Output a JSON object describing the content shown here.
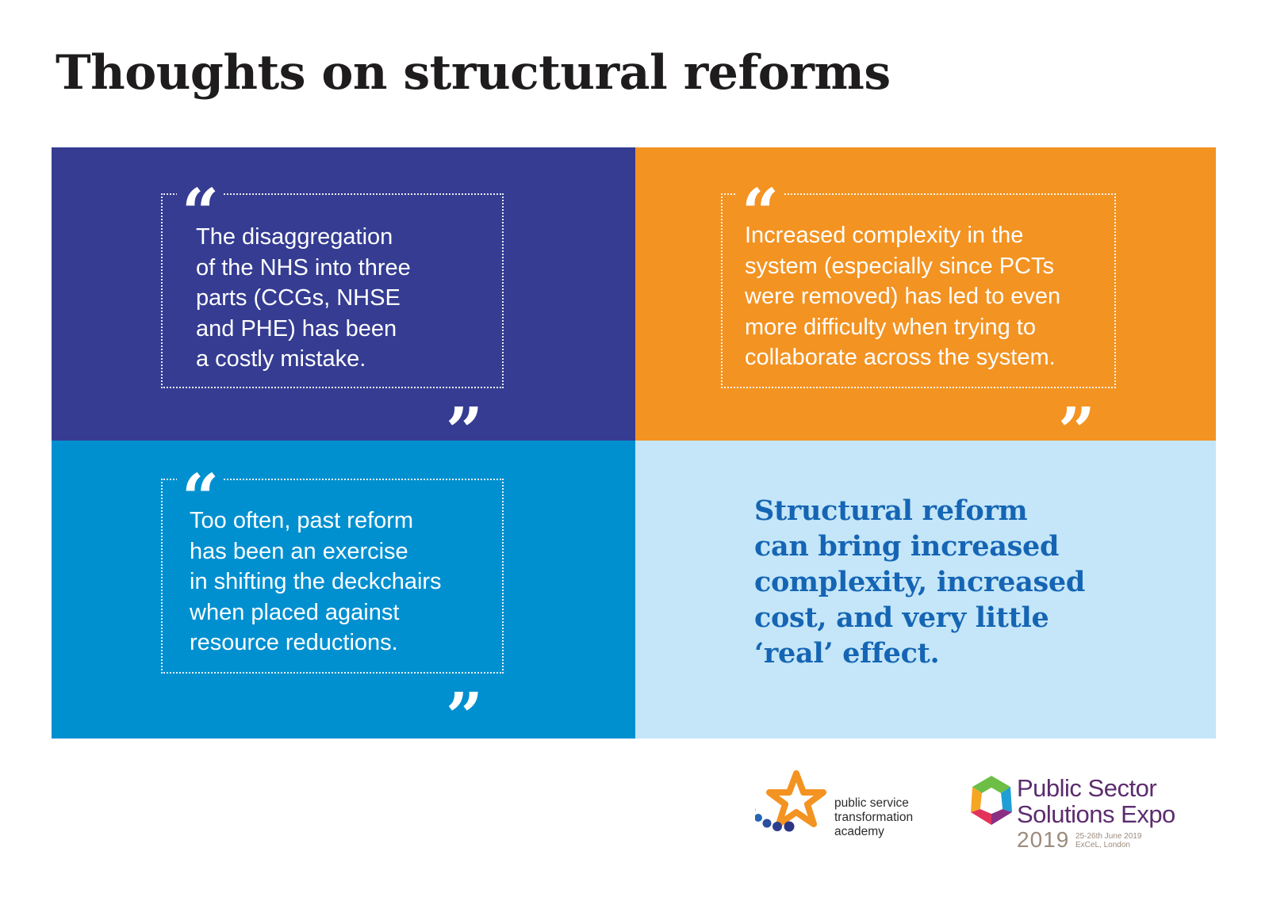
{
  "title": "Thoughts on structural reforms",
  "quotes": [
    {
      "lines": [
        "The disaggregation",
        "of the NHS into three",
        "parts (CCGs, NHSE",
        "and PHE) has been",
        "a costly mistake."
      ]
    },
    {
      "lines": [
        "Increased complexity in the",
        "system (especially since PCTs",
        "were removed) has led to even",
        "more difficulty when trying to",
        "collaborate across the system."
      ]
    },
    {
      "lines": [
        "Too often, past reform",
        "has been an exercise",
        "in shifting the deckchairs",
        "when placed against",
        "resource reductions."
      ]
    }
  ],
  "quote_marks": {
    "open": "“",
    "close": "”"
  },
  "statement": {
    "lines": [
      "Structural reform",
      "can bring increased",
      "complexity, increased",
      "cost, and very little",
      "‘real’ effect."
    ]
  },
  "colors": {
    "panel_1": "#353c92",
    "panel_2": "#f39322",
    "panel_3": "#0090d0",
    "panel_4": "#c4e6f8",
    "statement": "#1565b4"
  },
  "logos": {
    "psta": {
      "icon": "star-dots-logo",
      "lines": [
        "public service",
        "transformation",
        "academy"
      ]
    },
    "expo": {
      "icon": "hexagon-logo",
      "lines": [
        "Public Sector",
        "Solutions Expo"
      ],
      "year": "2019",
      "date_lines": [
        "25-26th June 2019",
        "ExCeL, London"
      ]
    }
  }
}
